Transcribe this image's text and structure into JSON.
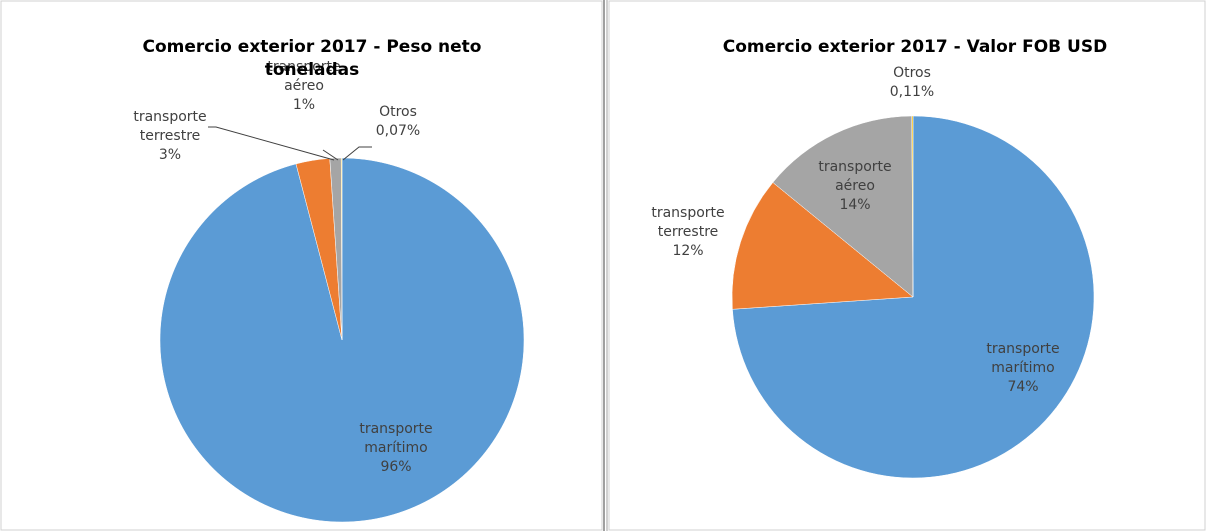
{
  "chart_data": [
    {
      "type": "pie",
      "title": "Comercio exterior 2017 - Peso neto toneladas",
      "categories": [
        "transporte marítimo",
        "transporte terrestre",
        "transporte aéreo",
        "Otros"
      ],
      "values": [
        96,
        3,
        1,
        0.07
      ],
      "value_labels": [
        "96%",
        "3%",
        "1%",
        "0,07%"
      ],
      "colors": [
        "#5b9bd5",
        "#ed7d31",
        "#a5a5a5",
        "#ffc000"
      ]
    },
    {
      "type": "pie",
      "title": "Comercio exterior 2017 - Valor FOB USD",
      "categories": [
        "transporte marítimo",
        "transporte terrestre",
        "transporte aéreo",
        "Otros"
      ],
      "values": [
        74,
        12,
        14,
        0.11
      ],
      "value_labels": [
        "74%",
        "12%",
        "14%",
        "0,11%"
      ],
      "colors": [
        "#5b9bd5",
        "#ed7d31",
        "#a5a5a5",
        "#ffc000"
      ]
    }
  ]
}
